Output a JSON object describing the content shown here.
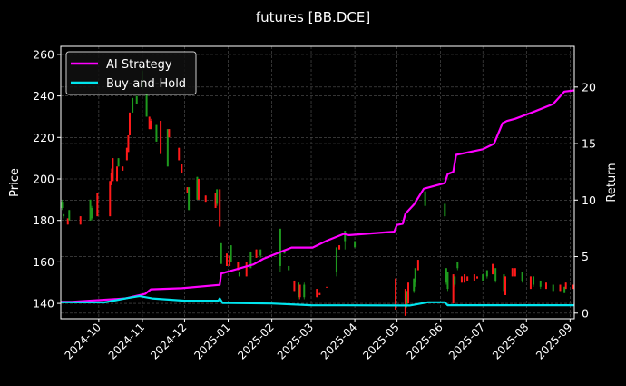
{
  "chart_data": {
    "type": "candlestick+line",
    "title": "futures [BB.DCE]",
    "ylabel_left": "Price",
    "ylabel_right": "Return",
    "xlim": [
      "2024-09-04",
      "2025-09-04"
    ],
    "ylim_left": [
      132.6,
      263.9
    ],
    "ylim_right": [
      -0.5,
      23.6
    ],
    "left_ticks": [
      140,
      160,
      180,
      200,
      220,
      240,
      260
    ],
    "right_ticks": [
      0,
      5,
      10,
      15,
      20
    ],
    "x_ticks": [
      "2024-10",
      "2024-11",
      "2024-12",
      "2025-01",
      "2025-02",
      "2025-03",
      "2025-04",
      "2025-05",
      "2025-06",
      "2025-07",
      "2025-08",
      "2025-09"
    ],
    "grid": true,
    "legend_position": "top-left",
    "colors": {
      "background": "#000000",
      "up": "#ff1a1a",
      "down": "#1e9a1e",
      "ai": "#ff00ff",
      "bh": "#00e5ee",
      "grid": "#555555"
    },
    "candles_ohlc": [
      [
        "2024-09-05",
        189,
        190,
        185,
        186
      ],
      [
        "2024-09-06",
        183,
        183,
        181,
        182
      ],
      [
        "2024-09-09",
        178,
        181,
        178,
        181
      ],
      [
        "2024-09-10",
        185,
        185,
        180,
        180
      ],
      [
        "2024-09-18",
        178,
        182,
        178,
        182
      ],
      [
        "2024-09-25",
        190,
        190,
        180,
        180
      ],
      [
        "2024-09-26",
        186,
        187,
        180,
        181
      ],
      [
        "2024-09-30",
        182,
        193,
        182,
        193
      ],
      [
        "2024-10-09",
        182,
        199,
        182,
        199
      ],
      [
        "2024-10-10",
        197,
        205,
        197,
        203
      ],
      [
        "2024-10-11",
        199,
        210,
        199,
        210
      ],
      [
        "2024-10-14",
        199,
        206,
        199,
        206
      ],
      [
        "2024-10-15",
        210,
        210,
        206,
        206
      ],
      [
        "2024-10-18",
        204,
        206,
        204,
        206
      ],
      [
        "2024-10-21",
        209,
        215,
        209,
        215
      ],
      [
        "2024-10-22",
        213,
        221,
        213,
        221
      ],
      [
        "2024-10-23",
        221,
        232,
        221,
        232
      ],
      [
        "2024-10-25",
        239,
        239,
        232,
        232
      ],
      [
        "2024-10-28",
        240,
        240,
        236,
        236
      ],
      [
        "2024-11-01",
        252,
        254,
        243,
        244
      ],
      [
        "2024-11-04",
        241,
        241,
        230,
        230
      ],
      [
        "2024-11-06",
        224,
        230,
        224,
        230
      ],
      [
        "2024-11-07",
        224,
        229,
        224,
        228
      ],
      [
        "2024-11-11",
        226,
        226,
        218,
        218
      ],
      [
        "2024-11-14",
        212,
        228,
        212,
        228
      ],
      [
        "2024-11-19",
        224,
        224,
        206,
        206
      ],
      [
        "2024-11-20",
        220,
        224,
        220,
        224
      ],
      [
        "2024-11-27",
        209,
        215,
        209,
        215
      ],
      [
        "2024-11-29",
        203,
        207,
        203,
        207
      ],
      [
        "2024-12-03",
        193,
        196,
        193,
        196
      ],
      [
        "2024-12-04",
        196,
        196,
        185,
        185
      ],
      [
        "2024-12-10",
        201,
        201,
        190,
        190
      ],
      [
        "2024-12-11",
        190,
        200,
        190,
        200
      ],
      [
        "2024-12-16",
        189,
        192,
        189,
        192
      ],
      [
        "2024-12-23",
        186,
        193,
        186,
        193
      ],
      [
        "2024-12-24",
        195,
        195,
        187,
        188
      ],
      [
        "2024-12-26",
        177,
        195,
        177,
        195
      ],
      [
        "2024-12-27",
        169,
        169,
        159,
        159
      ],
      [
        "2024-12-31",
        158,
        164,
        158,
        164
      ],
      [
        "2025-01-02",
        158,
        163,
        158,
        163
      ],
      [
        "2025-01-03",
        168,
        168,
        160,
        160
      ],
      [
        "2025-01-08",
        156,
        160,
        156,
        160
      ],
      [
        "2025-01-09",
        155,
        155,
        153,
        153
      ],
      [
        "2025-01-14",
        153,
        160,
        153,
        160
      ],
      [
        "2025-01-17",
        165,
        165,
        157,
        157
      ],
      [
        "2025-01-21",
        162,
        166,
        162,
        166
      ],
      [
        "2025-01-24",
        166,
        166,
        162,
        163
      ],
      [
        "2025-01-27",
        165,
        165,
        165,
        165
      ],
      [
        "2025-02-07",
        176,
        176,
        155,
        158
      ],
      [
        "2025-02-10",
        166,
        166,
        164,
        164
      ],
      [
        "2025-02-13",
        158,
        158,
        156,
        156
      ],
      [
        "2025-02-17",
        146,
        151,
        146,
        151
      ],
      [
        "2025-02-20",
        150,
        150,
        142,
        143
      ],
      [
        "2025-02-21",
        143,
        149,
        142,
        149
      ],
      [
        "2025-02-24",
        149,
        150,
        142,
        143
      ],
      [
        "2025-03-05",
        143,
        147,
        143,
        147
      ],
      [
        "2025-03-07",
        144,
        145,
        144,
        145
      ],
      [
        "2025-03-12",
        148,
        148,
        148,
        148
      ],
      [
        "2025-03-19",
        167,
        167,
        153,
        155
      ],
      [
        "2025-03-21",
        166,
        168,
        166,
        168
      ],
      [
        "2025-03-25",
        175,
        175,
        166,
        170
      ],
      [
        "2025-04-01",
        170,
        170,
        167,
        167
      ],
      [
        "2025-04-30",
        137,
        152,
        137,
        152
      ],
      [
        "2025-05-07",
        134,
        147,
        134,
        147
      ],
      [
        "2025-05-08",
        146,
        146,
        138,
        139
      ],
      [
        "2025-05-09",
        140,
        150,
        140,
        150
      ],
      [
        "2025-05-13",
        152,
        152,
        145,
        146
      ],
      [
        "2025-05-14",
        157,
        157,
        148,
        150
      ],
      [
        "2025-05-16",
        156,
        161,
        156,
        161
      ],
      [
        "2025-05-21",
        194,
        194,
        186,
        187
      ],
      [
        "2025-06-04",
        188,
        188,
        181,
        182
      ],
      [
        "2025-06-05",
        157,
        157,
        149,
        150
      ],
      [
        "2025-06-06",
        155,
        155,
        146,
        147
      ],
      [
        "2025-06-10",
        140,
        154,
        140,
        154
      ],
      [
        "2025-06-11",
        153,
        153,
        148,
        149
      ],
      [
        "2025-06-13",
        160,
        160,
        156,
        157
      ],
      [
        "2025-06-16",
        150,
        153,
        150,
        153
      ],
      [
        "2025-06-18",
        150,
        154,
        150,
        154
      ],
      [
        "2025-06-20",
        151,
        153,
        151,
        153
      ],
      [
        "2025-06-25",
        151,
        154,
        151,
        154
      ],
      [
        "2025-06-27",
        152,
        153,
        152,
        153
      ],
      [
        "2025-07-01",
        154,
        154,
        151,
        151
      ],
      [
        "2025-07-04",
        156,
        156,
        152,
        153
      ],
      [
        "2025-07-08",
        154,
        159,
        154,
        159
      ],
      [
        "2025-07-10",
        157,
        157,
        150,
        151
      ],
      [
        "2025-07-16",
        154,
        154,
        145,
        146
      ],
      [
        "2025-07-17",
        144,
        153,
        144,
        153
      ],
      [
        "2025-07-22",
        153,
        157,
        153,
        157
      ],
      [
        "2025-07-24",
        153,
        157,
        153,
        157
      ],
      [
        "2025-07-29",
        155,
        155,
        150,
        151
      ],
      [
        "2025-08-04",
        147,
        153,
        147,
        153
      ],
      [
        "2025-08-06",
        153,
        153,
        148,
        149
      ],
      [
        "2025-08-11",
        151,
        151,
        147,
        148
      ],
      [
        "2025-08-15",
        147,
        150,
        147,
        150
      ],
      [
        "2025-08-20",
        149,
        149,
        146,
        146
      ],
      [
        "2025-08-25",
        146,
        149,
        146,
        149
      ],
      [
        "2025-08-28",
        148,
        148,
        145,
        145
      ],
      [
        "2025-08-29",
        147,
        150,
        147,
        150
      ],
      [
        "2025-09-03",
        147,
        149,
        147,
        149
      ]
    ],
    "series": [
      {
        "name": "AI Strategy",
        "axis": "right",
        "points": [
          [
            "2024-09-04",
            1.0
          ],
          [
            "2024-09-12",
            1.0
          ],
          [
            "2024-10-20",
            1.3
          ],
          [
            "2024-11-03",
            1.7
          ],
          [
            "2024-11-07",
            2.1
          ],
          [
            "2024-11-29",
            2.2
          ],
          [
            "2024-12-26",
            2.5
          ],
          [
            "2024-12-27",
            3.5
          ],
          [
            "2025-01-19",
            4.3
          ],
          [
            "2025-01-26",
            4.8
          ],
          [
            "2025-02-01",
            5.1
          ],
          [
            "2025-02-15",
            5.8
          ],
          [
            "2025-03-02",
            5.8
          ],
          [
            "2025-03-12",
            6.4
          ],
          [
            "2025-03-24",
            7.0
          ],
          [
            "2025-03-28",
            6.9
          ],
          [
            "2025-04-29",
            7.2
          ],
          [
            "2025-05-01",
            7.8
          ],
          [
            "2025-05-05",
            7.9
          ],
          [
            "2025-05-07",
            8.8
          ],
          [
            "2025-05-13",
            9.6
          ],
          [
            "2025-05-20",
            11.0
          ],
          [
            "2025-06-04",
            11.5
          ],
          [
            "2025-06-06",
            12.3
          ],
          [
            "2025-06-10",
            12.5
          ],
          [
            "2025-06-12",
            14.0
          ],
          [
            "2025-07-01",
            14.5
          ],
          [
            "2025-07-09",
            15.0
          ],
          [
            "2025-07-15",
            16.8
          ],
          [
            "2025-07-18",
            17.0
          ],
          [
            "2025-07-24",
            17.2
          ],
          [
            "2025-08-06",
            17.8
          ],
          [
            "2025-08-20",
            18.5
          ],
          [
            "2025-08-28",
            19.6
          ],
          [
            "2025-09-04",
            19.7
          ]
        ]
      },
      {
        "name": "Buy-and-Hold",
        "axis": "right",
        "points": [
          [
            "2024-09-04",
            0.96
          ],
          [
            "2024-10-05",
            0.95
          ],
          [
            "2024-10-20",
            1.3
          ],
          [
            "2024-10-30",
            1.5
          ],
          [
            "2024-11-08",
            1.3
          ],
          [
            "2024-12-01",
            1.1
          ],
          [
            "2024-12-25",
            1.1
          ],
          [
            "2024-12-26",
            1.3
          ],
          [
            "2024-12-28",
            0.9
          ],
          [
            "2025-02-01",
            0.85
          ],
          [
            "2025-03-01",
            0.7
          ],
          [
            "2025-05-10",
            0.67
          ],
          [
            "2025-05-23",
            0.96
          ],
          [
            "2025-06-04",
            0.96
          ],
          [
            "2025-06-06",
            0.7
          ],
          [
            "2025-09-04",
            0.7
          ]
        ]
      }
    ]
  }
}
